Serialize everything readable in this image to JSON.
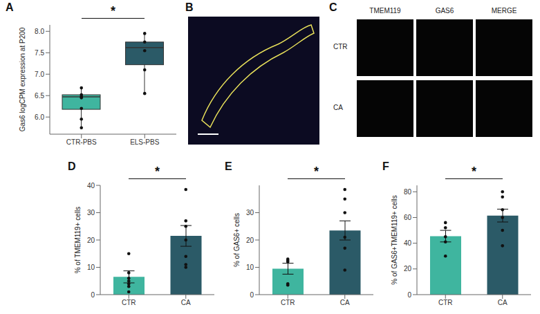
{
  "chart_data": [
    {
      "panel": "A",
      "type": "box",
      "categories": [
        "CTR-PBS",
        "ELS-PBS"
      ],
      "colors": [
        "#3fb59f",
        "#2b5a67"
      ],
      "box": [
        {
          "min": 5.75,
          "q1": 6.18,
          "median": 6.47,
          "q3": 6.52,
          "max": 6.68
        },
        {
          "min": 6.55,
          "q1": 7.22,
          "median": 7.62,
          "q3": 7.75,
          "max": 7.95
        }
      ],
      "points": [
        [
          6.68,
          6.52,
          6.48,
          6.45,
          6.2,
          5.95,
          5.75
        ],
        [
          7.95,
          7.75,
          7.55,
          7.1,
          6.55
        ]
      ],
      "y_label": "Gas6 logCPM expression at P200",
      "ylim": [
        5.6,
        8.15
      ],
      "yticks": [
        {
          "value": 6,
          "label": "6.0"
        },
        {
          "value": 6.5,
          "label": "6.5"
        },
        {
          "value": 7,
          "label": "7.0"
        },
        {
          "value": 7.5,
          "label": "7.5"
        },
        {
          "value": 8,
          "label": "8.0"
        }
      ],
      "annotations": [
        "*"
      ]
    },
    {
      "panel": "B",
      "type": "image"
    },
    {
      "panel": "C",
      "type": "image",
      "columns": [
        "TMEM119",
        "GAS6",
        "MERGE"
      ],
      "rows": [
        "CTR",
        "CA"
      ]
    },
    {
      "panel": "D",
      "type": "bar",
      "categories": [
        "CTR",
        "CA"
      ],
      "colors": [
        "#3fb59f",
        "#2b5a67"
      ],
      "values": [
        6.5,
        21.5
      ],
      "error": [
        2.2,
        3.8
      ],
      "points": [
        [
          15,
          8,
          6,
          5,
          4,
          3,
          1
        ],
        [
          38.5,
          27,
          25,
          20,
          14,
          11,
          10
        ]
      ],
      "y_label": "% of TMEM119+ cells",
      "ylim": [
        0,
        40
      ],
      "yticks": [
        0,
        10,
        20,
        30,
        40
      ],
      "annotations": [
        "*"
      ]
    },
    {
      "panel": "E",
      "type": "bar",
      "categories": [
        "CTR",
        "CA"
      ],
      "colors": [
        "#3fb59f",
        "#2b5a67"
      ],
      "values": [
        9.5,
        23.5
      ],
      "error": [
        2,
        3.5
      ],
      "points": [
        [
          13,
          12.5,
          12,
          4,
          3.5
        ],
        [
          38.5,
          35,
          30,
          21,
          17,
          9
        ]
      ],
      "y_label": "% of GAS6+ cells",
      "ylim": [
        0,
        40
      ],
      "yticks": [
        0,
        10,
        20,
        30
      ],
      "annotations": [
        "*"
      ]
    },
    {
      "panel": "F",
      "type": "bar",
      "categories": [
        "CTR",
        "CA"
      ],
      "colors": [
        "#3fb59f",
        "#2b5a67"
      ],
      "values": [
        45.5,
        61.5
      ],
      "error": [
        4.5,
        5
      ],
      "points": [
        [
          56,
          52,
          45,
          41,
          30
        ],
        [
          80,
          76,
          66,
          60,
          50,
          38
        ]
      ],
      "y_label": "% of GAS6+TMEM119+ cells",
      "ylim": [
        0,
        85
      ],
      "yticks": [
        0,
        20,
        40,
        60,
        80
      ],
      "annotations": [
        "*"
      ]
    }
  ]
}
